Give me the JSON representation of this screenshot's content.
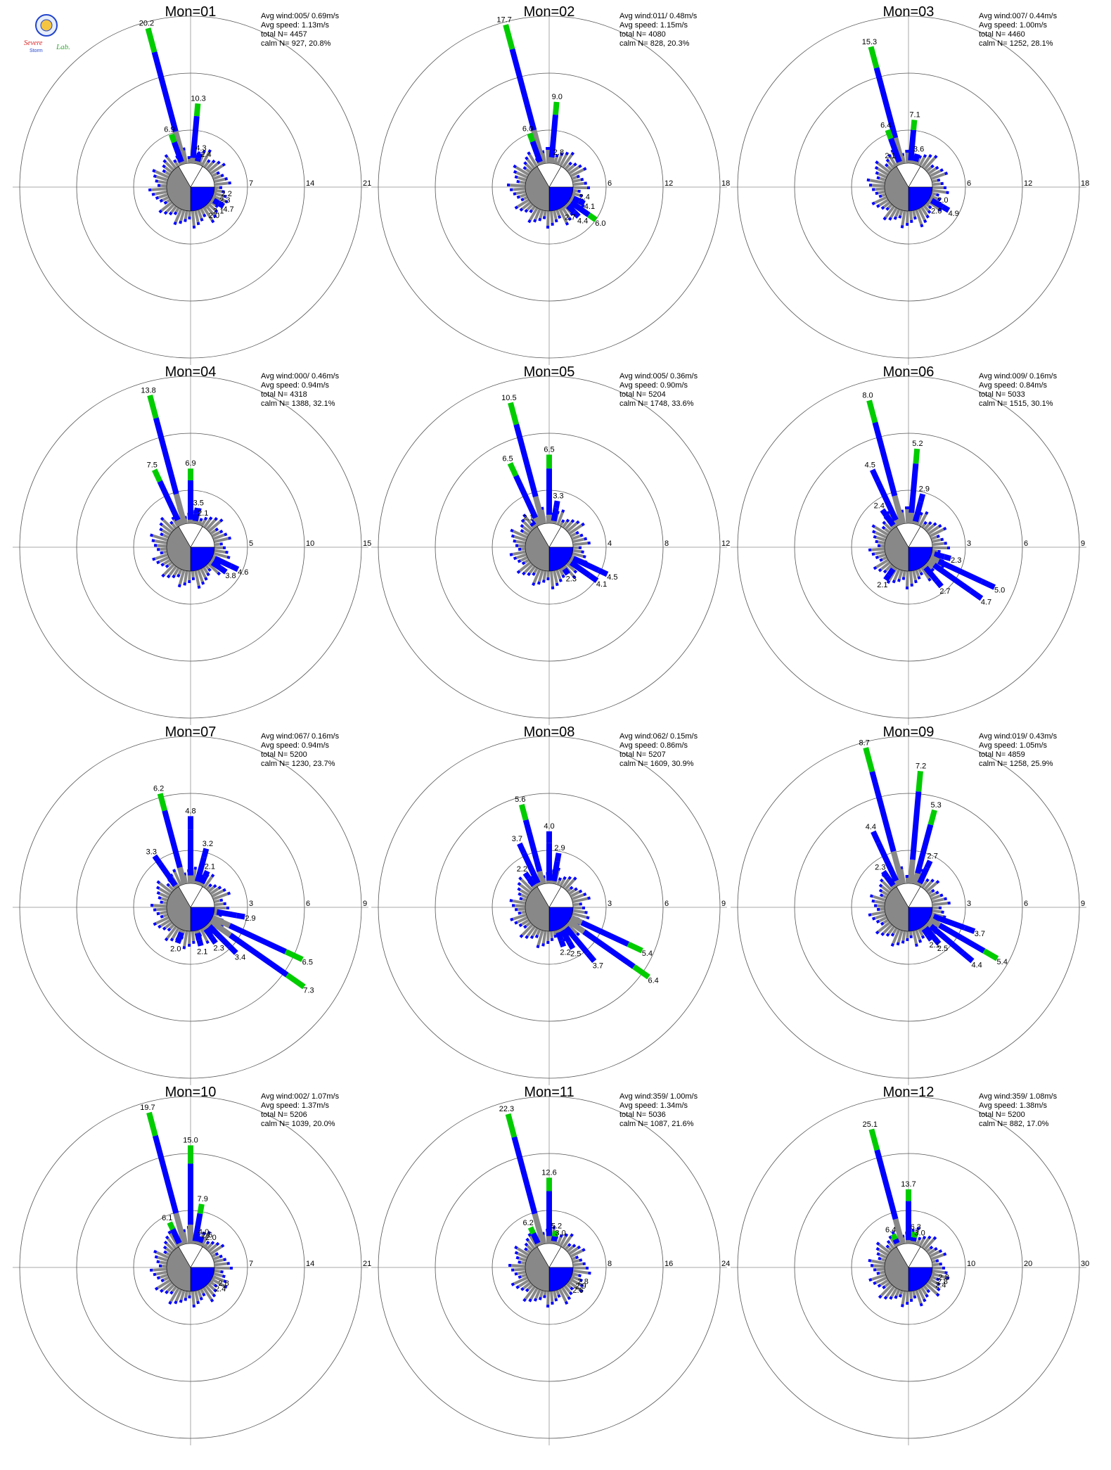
{
  "logo": {
    "text_primary": "Severe",
    "text_secondary": "Storm",
    "text_tertiary": "Lab.",
    "colors": [
      "#2244cc",
      "#dd2222",
      "#33aa33"
    ]
  },
  "colors": {
    "band_low": "#888888",
    "band_mid": "#0000ff",
    "band_high": "#00cc00",
    "band_top": "#ff6600",
    "ring": "#555555",
    "axis": "#aaaaaa"
  },
  "chart_data": [
    {
      "type": "wind-rose",
      "title": "Mon=01",
      "avg_wind": "005/ 0.69m/s",
      "avg_speed": "1.13m/s",
      "total_n": "4457",
      "calm": "927, 20.8%",
      "ring_labels": [
        "7",
        "14",
        "21"
      ],
      "rmax": 21,
      "labeled_bars": [
        {
          "dir": 345,
          "value": 20.2,
          "label": "20.2"
        },
        {
          "dir": 5,
          "value": 10.3,
          "label": "10.3"
        },
        {
          "dir": 340,
          "value": 6.9,
          "label": "6.9"
        },
        {
          "dir": 15,
          "value": 4.3,
          "label": "4.3"
        },
        {
          "dir": 25,
          "value": 2.4,
          "label": "2.4"
        },
        {
          "dir": 100,
          "value": 2.2,
          "label": "2.2"
        },
        {
          "dir": 110,
          "value": 2.3,
          "label": "2.3"
        },
        {
          "dir": 120,
          "value": 4.7,
          "label": "4.7"
        },
        {
          "dir": 130,
          "value": 2.1,
          "label": "2.1"
        },
        {
          "dir": 140,
          "value": 2.0,
          "label": "2.0"
        }
      ]
    },
    {
      "type": "wind-rose",
      "title": "Mon=02",
      "avg_wind": "011/ 0.48m/s",
      "avg_speed": "1.15m/s",
      "total_n": "4080",
      "calm": "828, 20.3%",
      "ring_labels": [
        "6",
        "12",
        "18"
      ],
      "rmax": 18,
      "labeled_bars": [
        {
          "dir": 345,
          "value": 17.7,
          "label": "17.7"
        },
        {
          "dir": 5,
          "value": 9.0,
          "label": "9.0"
        },
        {
          "dir": 340,
          "value": 6.0,
          "label": "6.0"
        },
        {
          "dir": 15,
          "value": 2.8,
          "label": "2.8"
        },
        {
          "dir": 105,
          "value": 2.4,
          "label": "2.4"
        },
        {
          "dir": 115,
          "value": 4.1,
          "label": "4.1"
        },
        {
          "dir": 125,
          "value": 6.0,
          "label": "6.0"
        },
        {
          "dir": 135,
          "value": 4.4,
          "label": "4.4"
        },
        {
          "dir": 145,
          "value": 2.7,
          "label": "2.7"
        }
      ]
    },
    {
      "type": "wind-rose",
      "title": "Mon=03",
      "avg_wind": "007/ 0.44m/s",
      "avg_speed": "1.00m/s",
      "total_n": "4460",
      "calm": "1252, 28.1%",
      "ring_labels": [
        "6",
        "12",
        "18"
      ],
      "rmax": 18,
      "labeled_bars": [
        {
          "dir": 345,
          "value": 15.3,
          "label": "15.3"
        },
        {
          "dir": 5,
          "value": 7.1,
          "label": "7.1"
        },
        {
          "dir": 340,
          "value": 6.4,
          "label": "6.4"
        },
        {
          "dir": 15,
          "value": 3.6,
          "label": "3.6"
        },
        {
          "dir": 330,
          "value": 2.1,
          "label": "2.1"
        },
        {
          "dir": 110,
          "value": 2.0,
          "label": "2.0"
        },
        {
          "dir": 120,
          "value": 4.9,
          "label": "4.9"
        },
        {
          "dir": 130,
          "value": 2.0,
          "label": "2.0"
        }
      ]
    },
    {
      "type": "wind-rose",
      "title": "Mon=04",
      "avg_wind": "000/ 0.46m/s",
      "avg_speed": "0.94m/s",
      "total_n": "4318",
      "calm": "1388, 32.1%",
      "ring_labels": [
        "5",
        "10",
        "15"
      ],
      "rmax": 15,
      "labeled_bars": [
        {
          "dir": 345,
          "value": 13.8,
          "label": "13.8"
        },
        {
          "dir": 335,
          "value": 7.5,
          "label": "7.5"
        },
        {
          "dir": 0,
          "value": 6.9,
          "label": "6.9"
        },
        {
          "dir": 10,
          "value": 3.5,
          "label": "3.5"
        },
        {
          "dir": 20,
          "value": 2.1,
          "label": "2.1"
        },
        {
          "dir": 115,
          "value": 4.6,
          "label": "4.6"
        },
        {
          "dir": 125,
          "value": 3.8,
          "label": "3.8"
        }
      ]
    },
    {
      "type": "wind-rose",
      "title": "Mon=05",
      "avg_wind": "005/ 0.36m/s",
      "avg_speed": "0.90m/s",
      "total_n": "5204",
      "calm": "1748, 33.6%",
      "ring_labels": [
        "4",
        "8",
        "12"
      ],
      "rmax": 12,
      "labeled_bars": [
        {
          "dir": 345,
          "value": 10.5,
          "label": "10.5"
        },
        {
          "dir": 0,
          "value": 6.5,
          "label": "6.5"
        },
        {
          "dir": 335,
          "value": 6.5,
          "label": "6.5"
        },
        {
          "dir": 10,
          "value": 3.3,
          "label": "3.3"
        },
        {
          "dir": 325,
          "value": 2.1,
          "label": "2.1"
        },
        {
          "dir": 115,
          "value": 4.5,
          "label": "4.5"
        },
        {
          "dir": 125,
          "value": 4.1,
          "label": "4.1"
        },
        {
          "dir": 145,
          "value": 2.3,
          "label": "2.3"
        }
      ]
    },
    {
      "type": "wind-rose",
      "title": "Mon=06",
      "avg_wind": "009/ 0.16m/s",
      "avg_speed": "0.84m/s",
      "total_n": "5033",
      "calm": "1515, 30.1%",
      "ring_labels": [
        "3",
        "6",
        "9"
      ],
      "rmax": 9,
      "labeled_bars": [
        {
          "dir": 345,
          "value": 8.0,
          "label": "8.0"
        },
        {
          "dir": 5,
          "value": 5.2,
          "label": "5.2"
        },
        {
          "dir": 335,
          "value": 4.5,
          "label": "4.5"
        },
        {
          "dir": 15,
          "value": 2.9,
          "label": "2.9"
        },
        {
          "dir": 325,
          "value": 2.4,
          "label": "2.4"
        },
        {
          "dir": 105,
          "value": 2.3,
          "label": "2.3"
        },
        {
          "dir": 115,
          "value": 5.0,
          "label": "5.0"
        },
        {
          "dir": 125,
          "value": 4.7,
          "label": "4.7"
        },
        {
          "dir": 140,
          "value": 2.7,
          "label": "2.7"
        },
        {
          "dir": 215,
          "value": 2.1,
          "label": "2.1"
        }
      ]
    },
    {
      "type": "wind-rose",
      "title": "Mon=07",
      "avg_wind": "067/ 0.16m/s",
      "avg_speed": "0.94m/s",
      "total_n": "5200",
      "calm": "1230, 23.7%",
      "ring_labels": [
        "3",
        "6",
        "9"
      ],
      "rmax": 9,
      "labeled_bars": [
        {
          "dir": 345,
          "value": 6.2,
          "label": "6.2"
        },
        {
          "dir": 0,
          "value": 4.8,
          "label": "4.8"
        },
        {
          "dir": 325,
          "value": 3.3,
          "label": "3.3"
        },
        {
          "dir": 15,
          "value": 3.2,
          "label": "3.2"
        },
        {
          "dir": 25,
          "value": 2.1,
          "label": "2.1"
        },
        {
          "dir": 100,
          "value": 2.9,
          "label": "2.9"
        },
        {
          "dir": 115,
          "value": 6.5,
          "label": "6.5"
        },
        {
          "dir": 125,
          "value": 7.3,
          "label": "7.3"
        },
        {
          "dir": 135,
          "value": 3.4,
          "label": "3.4"
        },
        {
          "dir": 145,
          "value": 2.3,
          "label": "2.3"
        },
        {
          "dir": 165,
          "value": 2.1,
          "label": "2.1"
        },
        {
          "dir": 200,
          "value": 2.0,
          "label": "2.0"
        }
      ]
    },
    {
      "type": "wind-rose",
      "title": "Mon=08",
      "avg_wind": "062/ 0.15m/s",
      "avg_speed": "0.86m/s",
      "total_n": "5207",
      "calm": "1609, 30.9%",
      "ring_labels": [
        "3",
        "6",
        "9"
      ],
      "rmax": 9,
      "labeled_bars": [
        {
          "dir": 345,
          "value": 5.6,
          "label": "5.6"
        },
        {
          "dir": 0,
          "value": 4.0,
          "label": "4.0"
        },
        {
          "dir": 335,
          "value": 3.7,
          "label": "3.7"
        },
        {
          "dir": 10,
          "value": 2.9,
          "label": "2.9"
        },
        {
          "dir": 325,
          "value": 2.2,
          "label": "2.2"
        },
        {
          "dir": 115,
          "value": 5.4,
          "label": "5.4"
        },
        {
          "dir": 125,
          "value": 6.4,
          "label": "6.4"
        },
        {
          "dir": 140,
          "value": 3.7,
          "label": "3.7"
        },
        {
          "dir": 150,
          "value": 2.5,
          "label": "2.5"
        },
        {
          "dir": 160,
          "value": 2.2,
          "label": "2.2"
        }
      ]
    },
    {
      "type": "wind-rose",
      "title": "Mon=09",
      "avg_wind": "019/ 0.43m/s",
      "avg_speed": "1.05m/s",
      "total_n": "4859",
      "calm": "1258, 25.9%",
      "ring_labels": [
        "3",
        "6",
        "9"
      ],
      "rmax": 9,
      "labeled_bars": [
        {
          "dir": 345,
          "value": 8.7,
          "label": "8.7"
        },
        {
          "dir": 5,
          "value": 7.2,
          "label": "7.2"
        },
        {
          "dir": 15,
          "value": 5.3,
          "label": "5.3"
        },
        {
          "dir": 335,
          "value": 4.4,
          "label": "4.4"
        },
        {
          "dir": 25,
          "value": 2.7,
          "label": "2.7"
        },
        {
          "dir": 325,
          "value": 2.3,
          "label": "2.3"
        },
        {
          "dir": 110,
          "value": 3.7,
          "label": "3.7"
        },
        {
          "dir": 120,
          "value": 5.4,
          "label": "5.4"
        },
        {
          "dir": 130,
          "value": 4.4,
          "label": "4.4"
        },
        {
          "dir": 140,
          "value": 2.5,
          "label": "2.5"
        },
        {
          "dir": 145,
          "value": 2.1,
          "label": "2.1"
        }
      ]
    },
    {
      "type": "wind-rose",
      "title": "Mon=10",
      "avg_wind": "002/ 1.07m/s",
      "avg_speed": "1.37m/s",
      "total_n": "5206",
      "calm": "1039, 20.0%",
      "ring_labels": [
        "7",
        "14",
        "21"
      ],
      "rmax": 21,
      "labeled_bars": [
        {
          "dir": 345,
          "value": 19.7,
          "label": "19.7"
        },
        {
          "dir": 0,
          "value": 15.0,
          "label": "15.0"
        },
        {
          "dir": 10,
          "value": 7.9,
          "label": "7.9"
        },
        {
          "dir": 335,
          "value": 6.1,
          "label": "6.1"
        },
        {
          "dir": 20,
          "value": 4.0,
          "label": "4.0"
        },
        {
          "dir": 27,
          "value": 2.6,
          "label": "2.6"
        },
        {
          "dir": 34,
          "value": 2.0,
          "label": "2.0"
        },
        {
          "dir": 115,
          "value": 2.8,
          "label": "2.8"
        },
        {
          "dir": 125,
          "value": 2.4,
          "label": "2.4"
        }
      ]
    },
    {
      "type": "wind-rose",
      "title": "Mon=11",
      "avg_wind": "359/ 1.00m/s",
      "avg_speed": "1.34m/s",
      "total_n": "5036",
      "calm": "1087, 21.6%",
      "ring_labels": [
        "8",
        "16",
        "24"
      ],
      "rmax": 24,
      "labeled_bars": [
        {
          "dir": 345,
          "value": 22.3,
          "label": "22.3"
        },
        {
          "dir": 0,
          "value": 12.6,
          "label": "12.6"
        },
        {
          "dir": 335,
          "value": 6.2,
          "label": "6.2"
        },
        {
          "dir": 10,
          "value": 5.2,
          "label": "5.2"
        },
        {
          "dir": 18,
          "value": 3.0,
          "label": "3.0"
        },
        {
          "dir": 112,
          "value": 2.8,
          "label": "2.8"
        },
        {
          "dir": 120,
          "value": 2.9,
          "label": "2.9"
        },
        {
          "dir": 128,
          "value": 2.6,
          "label": "2.6"
        }
      ]
    },
    {
      "type": "wind-rose",
      "title": "Mon=12",
      "avg_wind": "359/ 1.08m/s",
      "avg_speed": "1.38m/s",
      "total_n": "5200",
      "calm": "882, 17.0%",
      "ring_labels": [
        "10",
        "20",
        "30"
      ],
      "rmax": 30,
      "labeled_bars": [
        {
          "dir": 345,
          "value": 25.1,
          "label": "25.1"
        },
        {
          "dir": 0,
          "value": 13.7,
          "label": "13.7"
        },
        {
          "dir": 335,
          "value": 6.4,
          "label": "6.4"
        },
        {
          "dir": 10,
          "value": 6.3,
          "label": "6.3"
        },
        {
          "dir": 18,
          "value": 3.0,
          "label": "3.0"
        },
        {
          "dir": 105,
          "value": 2.8,
          "label": "2.8"
        },
        {
          "dir": 112,
          "value": 2.8,
          "label": "2.8"
        },
        {
          "dir": 118,
          "value": 2.4,
          "label": "2.4"
        }
      ]
    }
  ],
  "text": {
    "avg_wind_prefix": "Avg wind:",
    "avg_speed_prefix": "Avg speed: ",
    "total_prefix": "total N=",
    "calm_prefix": "calm N="
  }
}
